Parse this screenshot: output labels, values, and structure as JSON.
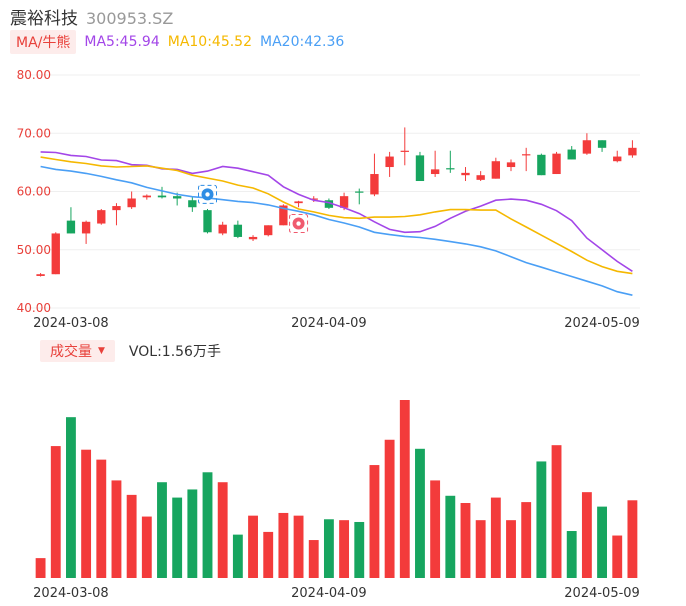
{
  "header": {
    "name": "震裕科技",
    "code": "300953.SZ"
  },
  "ma_legend": {
    "tag": "MA/牛熊",
    "ma5": {
      "label": "MA5:45.94",
      "color": "#a346e8"
    },
    "ma10": {
      "label": "MA10:45.52",
      "color": "#f5b800"
    },
    "ma20": {
      "label": "MA20:42.36",
      "color": "#4a9ff5"
    }
  },
  "volume_legend": {
    "tag": "成交量",
    "value": "VOL:1.56万手"
  },
  "colors": {
    "up": "#f33b3b",
    "down": "#17a55f",
    "label_red": "#e8413b",
    "grid": "#efefef"
  },
  "icons": {
    "bear_marker": "bear-icon",
    "bull_marker": "bull-icon"
  },
  "chart_data": [
    {
      "type": "candlestick",
      "yticks": [
        "80.00",
        "70.00",
        "60.00",
        "50.00",
        "40.00"
      ],
      "ylim": [
        40,
        80
      ],
      "xticks": [
        {
          "label": "2024-03-08",
          "index": 2
        },
        {
          "label": "2024-04-09",
          "index": 19
        },
        {
          "label": "2024-05-09",
          "index": 37
        }
      ],
      "candles": [
        {
          "o": 45.5,
          "h": 46.0,
          "l": 45.4,
          "c": 45.8
        },
        {
          "o": 45.8,
          "h": 53.0,
          "l": 45.8,
          "c": 52.8
        },
        {
          "o": 55.0,
          "h": 57.3,
          "l": 52.8,
          "c": 52.8
        },
        {
          "o": 52.8,
          "h": 55.0,
          "l": 51.0,
          "c": 54.8
        },
        {
          "o": 54.5,
          "h": 57.0,
          "l": 54.3,
          "c": 56.8
        },
        {
          "o": 56.8,
          "h": 58.0,
          "l": 54.2,
          "c": 57.5
        },
        {
          "o": 57.3,
          "h": 60.0,
          "l": 57.0,
          "c": 58.8
        },
        {
          "o": 59.0,
          "h": 59.5,
          "l": 58.6,
          "c": 59.3
        },
        {
          "o": 59.3,
          "h": 60.8,
          "l": 58.8,
          "c": 59.0
        },
        {
          "o": 59.2,
          "h": 59.8,
          "l": 57.6,
          "c": 58.8
        },
        {
          "o": 58.5,
          "h": 59.0,
          "l": 56.5,
          "c": 57.3
        },
        {
          "o": 56.8,
          "h": 57.0,
          "l": 52.8,
          "c": 53.0
        },
        {
          "o": 52.8,
          "h": 54.8,
          "l": 52.5,
          "c": 54.3
        },
        {
          "o": 54.3,
          "h": 55.0,
          "l": 52.0,
          "c": 52.2
        },
        {
          "o": 51.8,
          "h": 52.5,
          "l": 51.5,
          "c": 52.2
        },
        {
          "o": 52.5,
          "h": 54.2,
          "l": 52.3,
          "c": 54.2
        },
        {
          "o": 54.2,
          "h": 57.8,
          "l": 54.2,
          "c": 57.6
        },
        {
          "o": 58.0,
          "h": 58.4,
          "l": 57.3,
          "c": 58.3
        },
        {
          "o": 58.6,
          "h": 59.2,
          "l": 58.2,
          "c": 58.8
        },
        {
          "o": 58.5,
          "h": 58.8,
          "l": 57.0,
          "c": 57.2
        },
        {
          "o": 57.2,
          "h": 59.8,
          "l": 56.8,
          "c": 59.2
        },
        {
          "o": 60.0,
          "h": 60.5,
          "l": 57.8,
          "c": 59.8
        },
        {
          "o": 59.5,
          "h": 66.5,
          "l": 59.2,
          "c": 63.0
        },
        {
          "o": 64.2,
          "h": 66.8,
          "l": 62.5,
          "c": 66.0
        },
        {
          "o": 67.0,
          "h": 71.0,
          "l": 64.5,
          "c": 67.0
        },
        {
          "o": 66.2,
          "h": 66.8,
          "l": 61.8,
          "c": 61.8
        },
        {
          "o": 63.0,
          "h": 67.0,
          "l": 62.5,
          "c": 63.8
        },
        {
          "o": 64.0,
          "h": 67.0,
          "l": 63.2,
          "c": 63.8
        },
        {
          "o": 62.8,
          "h": 64.2,
          "l": 61.8,
          "c": 63.2
        },
        {
          "o": 62.0,
          "h": 63.5,
          "l": 61.8,
          "c": 62.8
        },
        {
          "o": 62.2,
          "h": 65.8,
          "l": 62.2,
          "c": 65.2
        },
        {
          "o": 64.2,
          "h": 65.5,
          "l": 63.5,
          "c": 65.0
        },
        {
          "o": 66.2,
          "h": 67.5,
          "l": 63.5,
          "c": 66.4
        },
        {
          "o": 66.3,
          "h": 66.5,
          "l": 62.8,
          "c": 62.8
        },
        {
          "o": 63.0,
          "h": 66.8,
          "l": 63.0,
          "c": 66.5
        },
        {
          "o": 67.2,
          "h": 67.8,
          "l": 65.5,
          "c": 65.5
        },
        {
          "o": 66.5,
          "h": 70.0,
          "l": 66.3,
          "c": 68.8
        },
        {
          "o": 68.8,
          "h": 68.8,
          "l": 66.8,
          "c": 67.5
        },
        {
          "o": 65.2,
          "h": 67.0,
          "l": 65.0,
          "c": 66.0
        },
        {
          "o": 66.2,
          "h": 68.8,
          "l": 65.8,
          "c": 67.5
        }
      ],
      "markers": [
        {
          "index": 11,
          "type": "bear",
          "price": 59.5
        },
        {
          "index": 17,
          "type": "bull",
          "price": 54.5
        }
      ],
      "ma_lines": {
        "ma5": [
          66.8,
          66.7,
          66.2,
          66.0,
          65.4,
          65.3,
          64.6,
          64.5,
          63.9,
          63.8,
          63.1,
          63.5,
          64.3,
          64.0,
          63.4,
          62.8,
          60.8,
          59.5,
          58.5,
          58.1,
          57.2,
          56.2,
          54.8,
          53.5,
          53.0,
          53.1,
          54.0,
          55.4,
          56.6,
          57.5,
          58.5,
          58.7,
          58.5,
          57.8,
          56.7,
          55.0,
          52.0,
          50.0,
          48.0,
          46.3
        ],
        "ma10": [
          65.9,
          65.5,
          65.1,
          64.8,
          64.4,
          64.2,
          64.3,
          64.4,
          64.0,
          63.6,
          62.8,
          62.3,
          61.8,
          61.1,
          60.6,
          59.6,
          58.2,
          57.0,
          56.5,
          55.9,
          55.5,
          55.4,
          55.6,
          55.6,
          55.7,
          56.0,
          56.5,
          56.9,
          56.9,
          56.8,
          56.8,
          55.3,
          53.9,
          52.5,
          51.1,
          49.7,
          48.2,
          47.1,
          46.3,
          45.9
        ],
        "ma20": [
          64.3,
          63.8,
          63.5,
          63.1,
          62.6,
          62.0,
          61.5,
          60.7,
          60.1,
          59.5,
          59.1,
          58.9,
          58.6,
          58.3,
          58.1,
          57.7,
          57.1,
          56.6,
          56.0,
          55.2,
          54.6,
          53.9,
          53.0,
          52.6,
          52.3,
          52.1,
          51.8,
          51.4,
          51.0,
          50.5,
          49.8,
          48.8,
          47.8,
          47.0,
          46.2,
          45.4,
          44.6,
          43.8,
          42.8,
          42.2
        ]
      }
    },
    {
      "type": "bar",
      "title": "成交量",
      "values": [
        2.2,
        14.6,
        17.8,
        14.2,
        13.1,
        10.8,
        9.2,
        6.8,
        10.6,
        8.9,
        9.8,
        11.7,
        10.6,
        4.8,
        6.9,
        5.1,
        7.2,
        6.9,
        4.2,
        6.5,
        6.4,
        6.2,
        12.5,
        15.3,
        19.7,
        14.3,
        10.8,
        9.1,
        8.3,
        6.4,
        8.9,
        6.4,
        8.4,
        12.9,
        14.7,
        5.2,
        9.5,
        7.9,
        4.7,
        8.6
      ],
      "ylim": [
        0,
        19.7
      ],
      "xticks": [
        "2024-03-08",
        "2024-04-09",
        "2024-05-09"
      ]
    }
  ]
}
